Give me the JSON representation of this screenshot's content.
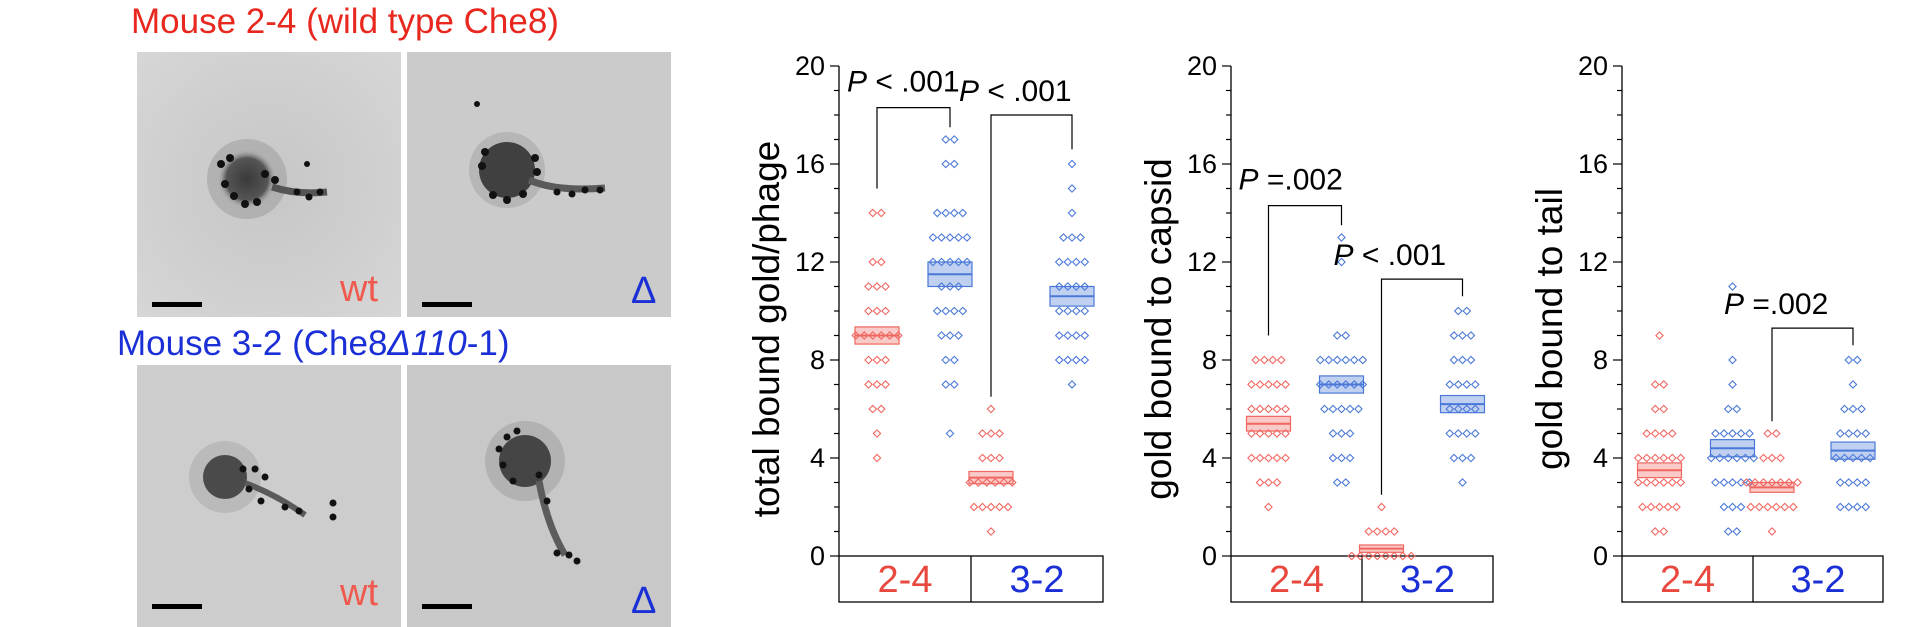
{
  "micrographs": {
    "row1_title": "Mouse 2-4 (wild type Che8)",
    "row2_title_prefix": "Mouse 3-2 (Che8",
    "row2_title_delta": "Δ",
    "row2_title_italic": "110",
    "row2_title_suffix": "-1)",
    "label_wt": "wt",
    "label_delta": "Δ",
    "title_colors": {
      "row1": "#e8281e",
      "row2": "#1a2fd6"
    },
    "label_colors": {
      "wt": "#f05a4e",
      "delta": "#1a2fd6"
    }
  },
  "colors": {
    "wt": "#f06660",
    "delta": "#4a78d8",
    "wt_label": "#e8483e",
    "delta_label": "#1a2fd6"
  },
  "chart_data": [
    {
      "type": "scatter",
      "ylabel": "total bound gold/phage",
      "ylim": [
        0,
        20
      ],
      "yticks": [
        0,
        4,
        8,
        12,
        16,
        20
      ],
      "categories": [
        "2-4",
        "3-2"
      ],
      "series": [
        {
          "group": "2-4",
          "condition": "wt",
          "mean": 9.0,
          "sem": 0.35,
          "counts": {
            "4": 1,
            "5": 1,
            "6": 2,
            "7": 3,
            "8": 3,
            "9": 6,
            "10": 3,
            "11": 3,
            "12": 2,
            "14": 2
          }
        },
        {
          "group": "2-4",
          "condition": "delta",
          "mean": 11.5,
          "sem": 0.5,
          "counts": {
            "5": 1,
            "7": 2,
            "8": 2,
            "9": 3,
            "10": 4,
            "11": 3,
            "12": 5,
            "13": 5,
            "14": 4,
            "16": 2,
            "17": 2
          }
        },
        {
          "group": "3-2",
          "condition": "wt",
          "mean": 3.2,
          "sem": 0.25,
          "counts": {
            "1": 1,
            "2": 5,
            "3": 6,
            "4": 3,
            "5": 3,
            "6": 1
          }
        },
        {
          "group": "3-2",
          "condition": "delta",
          "mean": 10.6,
          "sem": 0.4,
          "counts": {
            "7": 1,
            "8": 4,
            "9": 4,
            "10": 4,
            "11": 4,
            "12": 4,
            "13": 3,
            "14": 1,
            "15": 1,
            "16": 1
          }
        }
      ],
      "annotations": [
        {
          "text_italic": "P",
          "text": " < .001",
          "pair": "2-4"
        },
        {
          "text_italic": "P",
          "text": " < .001",
          "pair": "cross"
        }
      ]
    },
    {
      "type": "scatter",
      "ylabel": "gold bound to capsid",
      "ylim": [
        0,
        20
      ],
      "yticks": [
        0,
        4,
        8,
        12,
        16,
        20
      ],
      "categories": [
        "2-4",
        "3-2"
      ],
      "series": [
        {
          "group": "2-4",
          "condition": "wt",
          "mean": 5.4,
          "sem": 0.3,
          "counts": {
            "2": 1,
            "3": 3,
            "4": 5,
            "5": 5,
            "6": 5,
            "7": 5,
            "8": 4
          }
        },
        {
          "group": "2-4",
          "condition": "delta",
          "mean": 7.0,
          "sem": 0.35,
          "counts": {
            "3": 2,
            "4": 3,
            "5": 3,
            "6": 5,
            "7": 6,
            "8": 6,
            "9": 2,
            "12": 1,
            "13": 1
          }
        },
        {
          "group": "3-2",
          "condition": "wt",
          "mean": 0.3,
          "sem": 0.15,
          "counts": {
            "0": 8,
            "1": 4,
            "2": 1
          }
        },
        {
          "group": "3-2",
          "condition": "delta",
          "mean": 6.2,
          "sem": 0.35,
          "counts": {
            "3": 1,
            "4": 3,
            "5": 4,
            "6": 4,
            "7": 4,
            "8": 3,
            "9": 3,
            "10": 2
          }
        }
      ],
      "annotations": [
        {
          "text_italic": "P",
          "text": " =.002",
          "pair": "2-4"
        },
        {
          "text_italic": "P",
          "text": " < .001",
          "pair": "3-2"
        }
      ]
    },
    {
      "type": "scatter",
      "ylabel": "gold bound to tail",
      "ylim": [
        0,
        20
      ],
      "yticks": [
        0,
        4,
        8,
        12,
        16,
        20
      ],
      "categories": [
        "2-4",
        "3-2"
      ],
      "series": [
        {
          "group": "2-4",
          "condition": "wt",
          "mean": 3.5,
          "sem": 0.3,
          "counts": {
            "1": 2,
            "2": 5,
            "3": 6,
            "4": 6,
            "5": 4,
            "6": 2,
            "7": 2,
            "9": 1
          }
        },
        {
          "group": "2-4",
          "condition": "delta",
          "mean": 4.4,
          "sem": 0.35,
          "counts": {
            "1": 2,
            "2": 3,
            "3": 5,
            "4": 6,
            "5": 5,
            "6": 2,
            "7": 1,
            "8": 1,
            "11": 1
          }
        },
        {
          "group": "3-2",
          "condition": "wt",
          "mean": 2.8,
          "sem": 0.2,
          "counts": {
            "1": 1,
            "2": 6,
            "3": 7,
            "4": 3,
            "5": 2
          }
        },
        {
          "group": "3-2",
          "condition": "delta",
          "mean": 4.3,
          "sem": 0.35,
          "counts": {
            "2": 4,
            "3": 4,
            "4": 5,
            "5": 4,
            "6": 3,
            "7": 1,
            "8": 2
          }
        }
      ],
      "annotations": [
        {
          "text_italic": "P",
          "text": " =.002",
          "pair": "3-2"
        }
      ]
    }
  ]
}
